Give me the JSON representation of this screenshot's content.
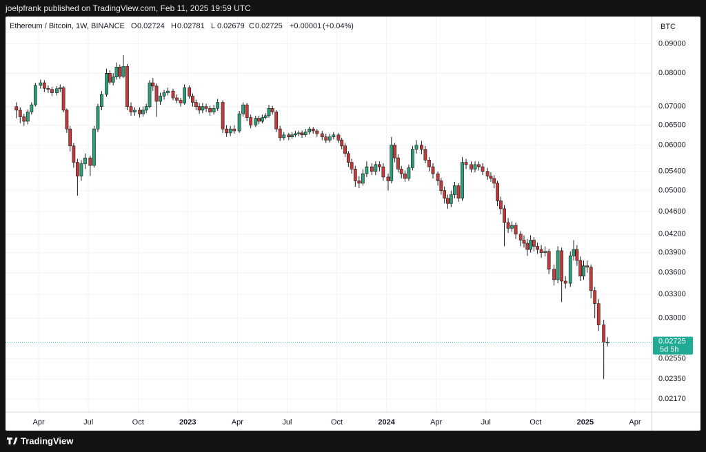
{
  "publisher": "joelpfrank published on TradingView.com, Feb 11, 2025 19:59 UTC",
  "footer_brand": "TradingView",
  "chart_data": {
    "type": "candlestick",
    "title": "Ethereum / Bitcoin, 1W, BINANCE",
    "ohlc_prefixes": [
      "O",
      "H",
      "L",
      "C"
    ],
    "change": {
      "value": 1e-05,
      "label": "+0.00001"
    },
    "change_percent": {
      "value": 0.04,
      "label": "(+0.04%)"
    },
    "y_unit": "BTC",
    "countdown": "5d 5h",
    "up_color": "#2e9e7a",
    "down_color": "#c23b3b",
    "last_price_color": "#22ab94",
    "log_scale": true,
    "grid": true,
    "ylim": [
      0.0206,
      0.1004
    ],
    "yticks": [
      {
        "value": 0.09,
        "label": "0.09000"
      },
      {
        "value": 0.08,
        "label": "0.08000"
      },
      {
        "value": 0.07,
        "label": "0.07000"
      },
      {
        "value": 0.065,
        "label": "0.06500"
      },
      {
        "value": 0.06,
        "label": "0.06000"
      },
      {
        "value": 0.054,
        "label": "0.05400"
      },
      {
        "value": 0.05,
        "label": "0.05000"
      },
      {
        "value": 0.046,
        "label": "0.04600"
      },
      {
        "value": 0.042,
        "label": "0.04200"
      },
      {
        "value": 0.039,
        "label": "0.03900"
      },
      {
        "value": 0.036,
        "label": "0.03600"
      },
      {
        "value": 0.033,
        "label": "0.03300"
      },
      {
        "value": 0.03,
        "label": "0.03000"
      },
      {
        "value": 0.0255,
        "label": "0.02550"
      },
      {
        "value": 0.0235,
        "label": "0.02350"
      },
      {
        "value": 0.0217,
        "label": "0.02170"
      }
    ],
    "xlim": [
      "2022-02",
      "2025-05"
    ],
    "xticks": [
      {
        "value": "2022-04",
        "label": "Apr"
      },
      {
        "value": "2022-07",
        "label": "Jul"
      },
      {
        "value": "2022-10",
        "label": "Oct"
      },
      {
        "value": "2023-01",
        "label": "2023"
      },
      {
        "value": "2023-04",
        "label": "Apr"
      },
      {
        "value": "2023-07",
        "label": "Jul"
      },
      {
        "value": "2023-10",
        "label": "Oct"
      },
      {
        "value": "2024-01",
        "label": "2024"
      },
      {
        "value": "2024-04",
        "label": "Apr"
      },
      {
        "value": "2024-07",
        "label": "Jul"
      },
      {
        "value": "2024-10",
        "label": "Oct"
      },
      {
        "value": "2025-01",
        "label": "2025"
      },
      {
        "value": "2025-04",
        "label": "Apr"
      }
    ],
    "x": [
      "2022-02",
      "2022-02",
      "2022-03",
      "2022-03",
      "2022-03",
      "2022-03",
      "2022-04",
      "2022-04",
      "2022-04",
      "2022-04",
      "2022-05",
      "2022-05",
      "2022-05",
      "2022-05",
      "2022-05",
      "2022-06",
      "2022-06",
      "2022-06",
      "2022-06",
      "2022-07",
      "2022-07",
      "2022-07",
      "2022-07",
      "2022-08",
      "2022-08",
      "2022-08",
      "2022-08",
      "2022-08",
      "2022-09",
      "2022-09",
      "2022-09",
      "2022-09",
      "2022-10",
      "2022-10",
      "2022-10",
      "2022-10",
      "2022-10",
      "2022-11",
      "2022-11",
      "2022-11",
      "2022-11",
      "2022-12",
      "2022-12",
      "2022-12",
      "2022-12",
      "2023-01",
      "2023-01",
      "2023-01",
      "2023-01",
      "2023-01",
      "2023-02",
      "2023-02",
      "2023-02",
      "2023-02",
      "2023-03",
      "2023-03",
      "2023-03",
      "2023-03",
      "2023-04",
      "2023-04",
      "2023-04",
      "2023-04",
      "2023-05",
      "2023-05",
      "2023-05",
      "2023-05",
      "2023-05",
      "2023-06",
      "2023-06",
      "2023-06",
      "2023-06",
      "2023-07",
      "2023-07",
      "2023-07",
      "2023-07",
      "2023-07",
      "2023-08",
      "2023-08",
      "2023-08",
      "2023-08",
      "2023-09",
      "2023-09",
      "2023-09",
      "2023-09",
      "2023-10",
      "2023-10",
      "2023-10",
      "2023-10",
      "2023-10",
      "2023-11",
      "2023-11",
      "2023-11",
      "2023-11",
      "2023-12",
      "2023-12",
      "2023-12",
      "2023-12",
      "2024-01",
      "2024-01",
      "2024-01",
      "2024-01",
      "2024-01",
      "2024-02",
      "2024-02",
      "2024-02",
      "2024-02",
      "2024-03",
      "2024-03",
      "2024-03",
      "2024-03",
      "2024-04",
      "2024-04",
      "2024-04",
      "2024-04",
      "2024-04",
      "2024-05",
      "2024-05",
      "2024-05",
      "2024-05",
      "2024-06",
      "2024-06",
      "2024-06",
      "2024-06",
      "2024-07",
      "2024-07",
      "2024-07",
      "2024-07",
      "2024-07",
      "2024-08",
      "2024-08",
      "2024-08",
      "2024-08",
      "2024-09",
      "2024-09",
      "2024-09",
      "2024-09",
      "2024-09",
      "2024-10",
      "2024-10",
      "2024-10",
      "2024-10",
      "2024-11",
      "2024-11",
      "2024-11",
      "2024-11",
      "2024-12",
      "2024-12",
      "2024-12",
      "2024-12",
      "2024-12",
      "2025-01",
      "2025-01",
      "2025-01",
      "2025-01",
      "2025-02",
      "2025-02"
    ],
    "open": [
      0.07,
      0.069,
      0.0672,
      0.066,
      0.0685,
      0.0705,
      0.0762,
      0.077,
      0.0753,
      0.075,
      0.074,
      0.0752,
      0.0755,
      0.069,
      0.064,
      0.0598,
      0.056,
      0.053,
      0.0557,
      0.057,
      0.0553,
      0.064,
      0.07,
      0.0735,
      0.08,
      0.0772,
      0.0788,
      0.082,
      0.079,
      0.0822,
      0.07,
      0.0685,
      0.069,
      0.068,
      0.069,
      0.07,
      0.077,
      0.076,
      0.0715,
      0.073,
      0.074,
      0.0745,
      0.0725,
      0.0718,
      0.071,
      0.0755,
      0.073,
      0.0712,
      0.07,
      0.069,
      0.07,
      0.0695,
      0.0685,
      0.0695,
      0.0712,
      0.064,
      0.063,
      0.064,
      0.0635,
      0.068,
      0.0705,
      0.067,
      0.065,
      0.0668,
      0.066,
      0.067,
      0.0675,
      0.0695,
      0.0685,
      0.064,
      0.0618,
      0.0625,
      0.062,
      0.0625,
      0.0628,
      0.063,
      0.0625,
      0.0632,
      0.064,
      0.0635,
      0.0628,
      0.062,
      0.0612,
      0.062,
      0.0625,
      0.0612,
      0.0598,
      0.058,
      0.056,
      0.0545,
      0.052,
      0.0515,
      0.0535,
      0.055,
      0.054,
      0.0555,
      0.055,
      0.0528,
      0.052,
      0.06,
      0.057,
      0.0545,
      0.0535,
      0.0525,
      0.0548,
      0.059,
      0.06,
      0.059,
      0.0565,
      0.055,
      0.0535,
      0.052,
      0.05,
      0.0485,
      0.0475,
      0.0492,
      0.051,
      0.0485,
      0.056,
      0.0555,
      0.0545,
      0.0555,
      0.055,
      0.054,
      0.053,
      0.0525,
      0.0515,
      0.048,
      0.0465,
      0.044,
      0.043,
      0.0435,
      0.042,
      0.041,
      0.0405,
      0.0395,
      0.041,
      0.04,
      0.0395,
      0.039,
      0.0392,
      0.0365,
      0.035,
      0.0393,
      0.0348,
      0.0345,
      0.0385,
      0.0395,
      0.0378,
      0.0355,
      0.037,
      0.0368,
      0.0335,
      0.0318,
      0.0292,
      0.02724
    ],
    "high": [
      0.0712,
      0.0698,
      0.068,
      0.0692,
      0.0712,
      0.077,
      0.078,
      0.0778,
      0.0762,
      0.0758,
      0.076,
      0.0765,
      0.076,
      0.0695,
      0.0648,
      0.0605,
      0.0568,
      0.0565,
      0.058,
      0.0575,
      0.0648,
      0.0708,
      0.0745,
      0.0815,
      0.081,
      0.08,
      0.0835,
      0.0828,
      0.086,
      0.083,
      0.0712,
      0.0698,
      0.0698,
      0.07,
      0.0708,
      0.0778,
      0.0785,
      0.0768,
      0.074,
      0.0748,
      0.0755,
      0.0752,
      0.0735,
      0.0725,
      0.0765,
      0.0762,
      0.0738,
      0.072,
      0.071,
      0.071,
      0.0708,
      0.0702,
      0.0705,
      0.0722,
      0.0718,
      0.065,
      0.0648,
      0.065,
      0.0688,
      0.0712,
      0.071,
      0.0678,
      0.0675,
      0.0675,
      0.0678,
      0.0682,
      0.0705,
      0.0702,
      0.069,
      0.0648,
      0.0632,
      0.063,
      0.0632,
      0.0635,
      0.0636,
      0.0636,
      0.064,
      0.0646,
      0.0645,
      0.064,
      0.0635,
      0.0628,
      0.0628,
      0.0632,
      0.063,
      0.0618,
      0.0605,
      0.0586,
      0.0568,
      0.0552,
      0.053,
      0.0545,
      0.0562,
      0.0558,
      0.0562,
      0.0562,
      0.0558,
      0.0535,
      0.062,
      0.0605,
      0.0578,
      0.0552,
      0.0542,
      0.0555,
      0.0598,
      0.0612,
      0.061,
      0.0598,
      0.0572,
      0.0558,
      0.054,
      0.0526,
      0.0508,
      0.0492,
      0.05,
      0.0518,
      0.0515,
      0.0572,
      0.0568,
      0.0562,
      0.0562,
      0.0562,
      0.0558,
      0.0548,
      0.0538,
      0.0532,
      0.052,
      0.0488,
      0.0472,
      0.0448,
      0.0442,
      0.044,
      0.0425,
      0.0418,
      0.0412,
      0.0418,
      0.0415,
      0.0406,
      0.0402,
      0.04,
      0.0396,
      0.0372,
      0.04,
      0.0398,
      0.0355,
      0.0392,
      0.041,
      0.0402,
      0.0384,
      0.0378,
      0.0378,
      0.0372,
      0.034,
      0.0324,
      0.0298,
      0.02781
    ],
    "low": [
      0.0668,
      0.0655,
      0.0648,
      0.0652,
      0.0678,
      0.07,
      0.0752,
      0.0742,
      0.074,
      0.073,
      0.0732,
      0.0742,
      0.0684,
      0.063,
      0.0585,
      0.0548,
      0.049,
      0.052,
      0.0545,
      0.053,
      0.0548,
      0.0632,
      0.069,
      0.0728,
      0.0765,
      0.0762,
      0.078,
      0.0782,
      0.0785,
      0.069,
      0.0675,
      0.0675,
      0.067,
      0.0672,
      0.0682,
      0.0695,
      0.0745,
      0.0672,
      0.0705,
      0.072,
      0.0732,
      0.0718,
      0.071,
      0.07,
      0.0705,
      0.0722,
      0.07,
      0.069,
      0.068,
      0.0682,
      0.0685,
      0.0675,
      0.0678,
      0.0688,
      0.063,
      0.062,
      0.0622,
      0.0628,
      0.063,
      0.0672,
      0.066,
      0.0642,
      0.0645,
      0.0652,
      0.0655,
      0.0665,
      0.067,
      0.0678,
      0.0632,
      0.061,
      0.0612,
      0.0612,
      0.0615,
      0.062,
      0.0622,
      0.0618,
      0.062,
      0.0626,
      0.0628,
      0.062,
      0.0612,
      0.0605,
      0.0606,
      0.0614,
      0.0605,
      0.059,
      0.0572,
      0.055,
      0.0535,
      0.0508,
      0.0505,
      0.051,
      0.0528,
      0.0532,
      0.0532,
      0.054,
      0.052,
      0.05,
      0.0515,
      0.056,
      0.0538,
      0.0525,
      0.0518,
      0.052,
      0.0542,
      0.058,
      0.0578,
      0.0558,
      0.054,
      0.0525,
      0.051,
      0.0492,
      0.0475,
      0.0465,
      0.0468,
      0.0485,
      0.0478,
      0.048,
      0.0545,
      0.0538,
      0.0538,
      0.0542,
      0.0532,
      0.0522,
      0.0518,
      0.0505,
      0.047,
      0.0455,
      0.04,
      0.0422,
      0.0424,
      0.0412,
      0.04,
      0.0398,
      0.0385,
      0.039,
      0.0392,
      0.0388,
      0.0382,
      0.0384,
      0.0358,
      0.0342,
      0.0345,
      0.032,
      0.0338,
      0.034,
      0.0378,
      0.037,
      0.0348,
      0.035,
      0.036,
      0.0325,
      0.03,
      0.0285,
      0.0235,
      0.02679
    ],
    "close": [
      0.069,
      0.0672,
      0.066,
      0.0685,
      0.0705,
      0.0762,
      0.077,
      0.0753,
      0.075,
      0.074,
      0.0752,
      0.0755,
      0.069,
      0.064,
      0.0598,
      0.056,
      0.053,
      0.0557,
      0.057,
      0.0553,
      0.064,
      0.07,
      0.0735,
      0.08,
      0.0772,
      0.0788,
      0.082,
      0.079,
      0.0822,
      0.07,
      0.0685,
      0.069,
      0.068,
      0.069,
      0.07,
      0.077,
      0.076,
      0.0715,
      0.073,
      0.074,
      0.0745,
      0.0725,
      0.0718,
      0.071,
      0.0755,
      0.073,
      0.0712,
      0.07,
      0.069,
      0.07,
      0.0695,
      0.0685,
      0.0695,
      0.0712,
      0.064,
      0.063,
      0.064,
      0.0635,
      0.068,
      0.0705,
      0.067,
      0.065,
      0.0668,
      0.066,
      0.067,
      0.0675,
      0.0695,
      0.0685,
      0.064,
      0.0618,
      0.0625,
      0.062,
      0.0625,
      0.0628,
      0.063,
      0.0625,
      0.0632,
      0.064,
      0.0635,
      0.0628,
      0.062,
      0.0612,
      0.062,
      0.0625,
      0.0612,
      0.0598,
      0.058,
      0.056,
      0.0545,
      0.052,
      0.0515,
      0.0535,
      0.055,
      0.054,
      0.0555,
      0.055,
      0.0528,
      0.052,
      0.06,
      0.057,
      0.0545,
      0.0535,
      0.0525,
      0.0548,
      0.059,
      0.06,
      0.059,
      0.0565,
      0.055,
      0.0535,
      0.052,
      0.05,
      0.0485,
      0.0475,
      0.0492,
      0.051,
      0.0485,
      0.056,
      0.0555,
      0.0545,
      0.0555,
      0.055,
      0.054,
      0.053,
      0.0525,
      0.0515,
      0.048,
      0.0465,
      0.044,
      0.043,
      0.0435,
      0.042,
      0.041,
      0.0405,
      0.0395,
      0.041,
      0.04,
      0.0395,
      0.039,
      0.0392,
      0.0365,
      0.035,
      0.0393,
      0.0348,
      0.0345,
      0.0385,
      0.0395,
      0.0378,
      0.0355,
      0.037,
      0.0368,
      0.0335,
      0.0318,
      0.0292,
      0.02724,
      0.02725
    ]
  }
}
